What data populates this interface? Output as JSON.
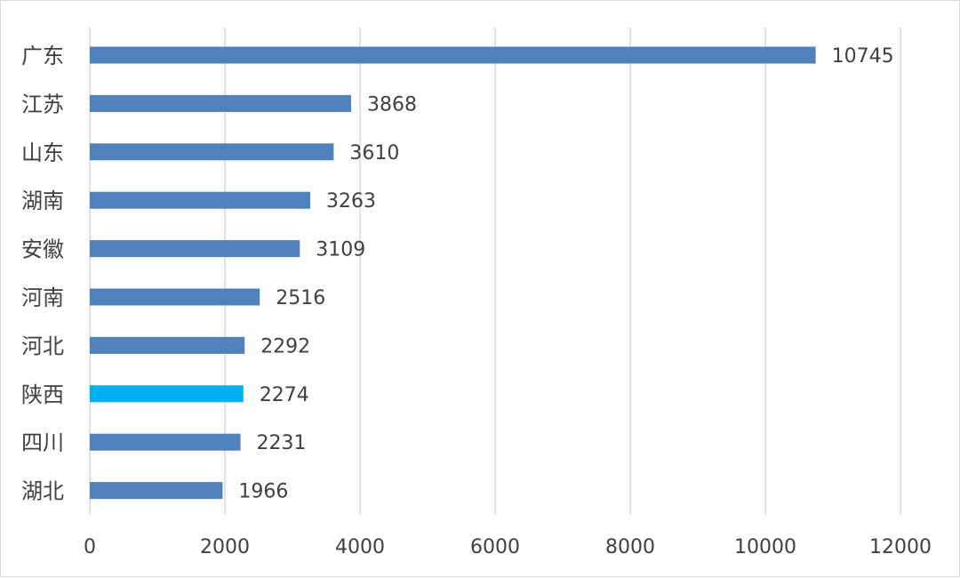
{
  "chart_data": {
    "type": "bar",
    "orientation": "horizontal",
    "categories": [
      "广东",
      "江苏",
      "山东",
      "湖南",
      "安徽",
      "河南",
      "河北",
      "陕西",
      "四川",
      "湖北"
    ],
    "values": [
      10745,
      3868,
      3610,
      3263,
      3109,
      2516,
      2292,
      2274,
      2231,
      1966
    ],
    "highlight_index": 7,
    "xlim": [
      0,
      12000
    ],
    "xticks": [
      0,
      2000,
      4000,
      6000,
      8000,
      10000,
      12000
    ],
    "grid": "vertical",
    "data_labels": true,
    "colors": {
      "bar": "#4f81bd",
      "highlight": "#00b0f0",
      "grid": "#d9d9d9",
      "text": "#404040"
    },
    "title": "",
    "xlabel": "",
    "ylabel": ""
  }
}
